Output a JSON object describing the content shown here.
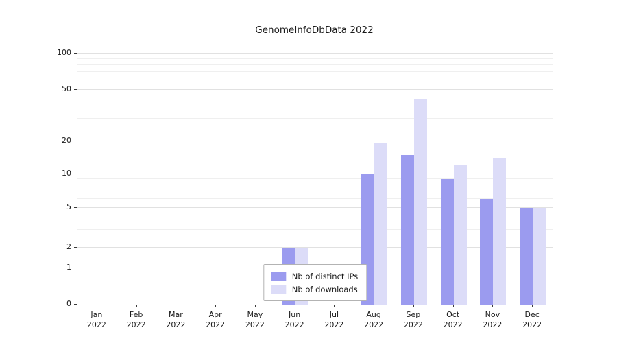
{
  "chart_data": {
    "type": "bar",
    "title": "GenomeInfoDbData 2022",
    "categories": [
      "Jan",
      "Feb",
      "Mar",
      "Apr",
      "May",
      "Jun",
      "Jul",
      "Aug",
      "Sep",
      "Oct",
      "Nov",
      "Dec"
    ],
    "category_year": "2022",
    "series": [
      {
        "name": "Nb of distinct IPs",
        "color": "#9b9bef",
        "values": [
          0,
          0,
          0,
          0,
          0,
          2,
          0,
          10,
          15,
          9,
          6,
          5
        ]
      },
      {
        "name": "Nb of downloads",
        "color": "#dcdcf8",
        "values": [
          0,
          0,
          0,
          0,
          0,
          2,
          0,
          19,
          43,
          12,
          14,
          5
        ]
      }
    ],
    "y_ticks": [
      0,
      1,
      2,
      5,
      10,
      20,
      50,
      100
    ],
    "y_scale": "log",
    "ylim": [
      0,
      110
    ],
    "xlabel": "",
    "ylabel": "",
    "grid": "horizontal",
    "legend_position": "inside-bottom-center"
  }
}
